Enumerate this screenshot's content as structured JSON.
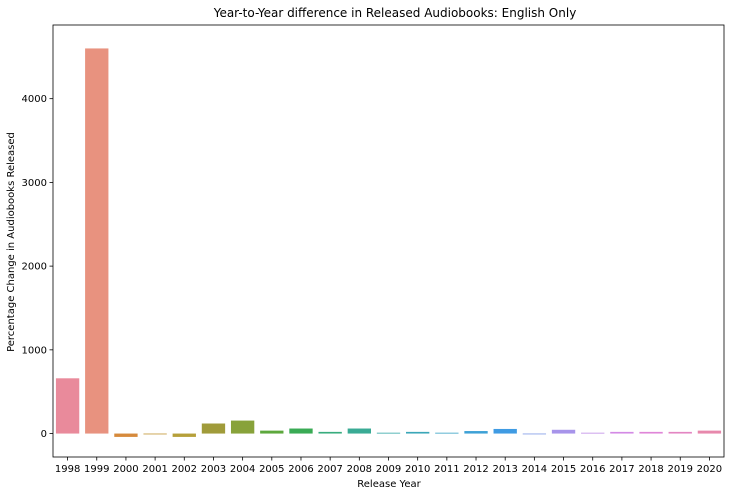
{
  "chart_data": {
    "type": "bar",
    "title": "Year-to-Year difference in Released Audiobooks: English Only",
    "xlabel": "Release Year",
    "ylabel": "Percentage Change in Audiobooks Released",
    "categories": [
      "1998",
      "1999",
      "2000",
      "2001",
      "2002",
      "2003",
      "2004",
      "2005",
      "2006",
      "2007",
      "2008",
      "2009",
      "2010",
      "2011",
      "2012",
      "2013",
      "2014",
      "2015",
      "2016",
      "2017",
      "2018",
      "2019",
      "2020"
    ],
    "values": [
      660,
      4600,
      -40,
      -10,
      -40,
      120,
      155,
      35,
      60,
      20,
      60,
      10,
      20,
      10,
      30,
      55,
      0,
      45,
      10,
      20,
      20,
      20,
      35
    ],
    "colors": [
      "#e98a9b",
      "#e8927f",
      "#d68a3c",
      "#c49a3a",
      "#b6a03a",
      "#a09b3a",
      "#88a23a",
      "#5da83d",
      "#3aab55",
      "#39ac7e",
      "#3aab95",
      "#3aa9a9",
      "#3ba7b8",
      "#3ca5c6",
      "#3ea1d6",
      "#3f9be3",
      "#7c97e8",
      "#a794ea",
      "#c08fe8",
      "#d38ae5",
      "#df86d8",
      "#e386c2",
      "#e788ac"
    ],
    "yticks": [
      0,
      1000,
      2000,
      3000,
      4000
    ],
    "ytick_labels": [
      "0",
      "1000",
      "2000",
      "3000",
      "4000"
    ],
    "ylim": [
      -280,
      4880
    ],
    "grid": false,
    "legend": "none"
  }
}
